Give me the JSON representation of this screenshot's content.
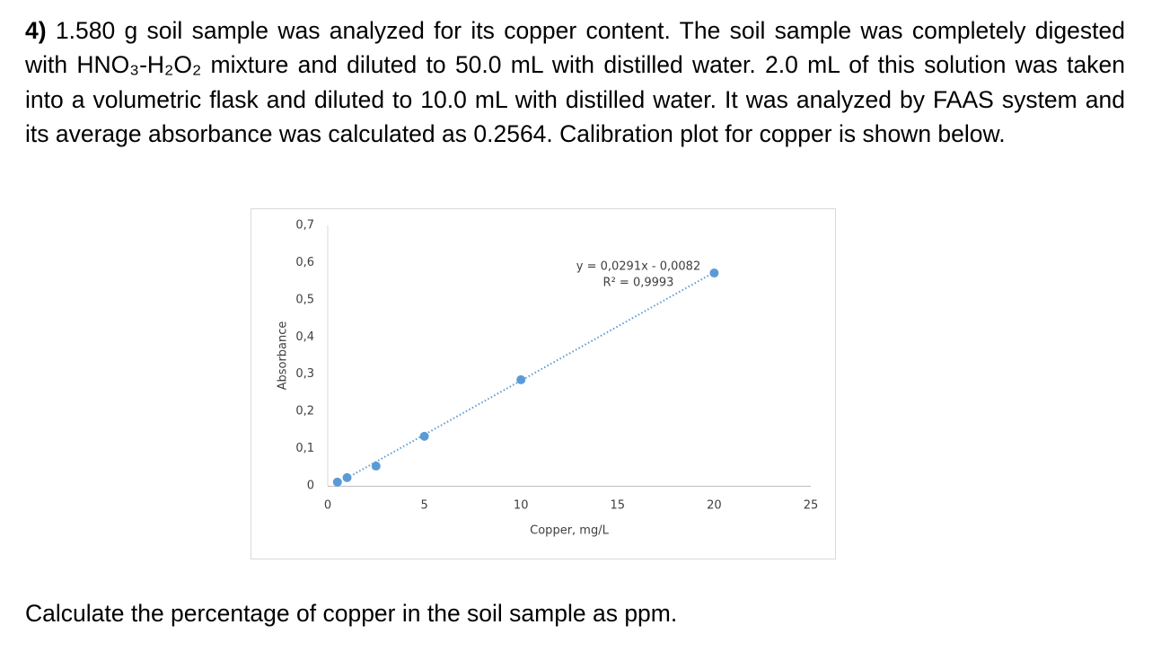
{
  "question": {
    "number": "4)",
    "text": "1.580 g soil sample was analyzed for its copper content. The soil sample was completely digested with HNO₃-H₂O₂ mixture and diluted to 50.0 mL with distilled water. 2.0 mL of this solution was taken into a volumetric flask and diluted to 10.0 mL with distilled water. It was analyzed by FAAS system and its average absorbance was calculated as 0.2564. Calibration plot for copper is shown below."
  },
  "chart_data": {
    "type": "scatter",
    "x_label": "Copper, mg/L",
    "y_label": "Absorbance",
    "x": [
      0.5,
      1,
      2.5,
      5,
      10,
      20
    ],
    "values": [
      0.01,
      0.022,
      0.053,
      0.133,
      0.285,
      0.572
    ],
    "color": "#5b9bd5",
    "xlim": [
      0,
      25
    ],
    "ylim": [
      0,
      0.7
    ],
    "xticks": [
      0,
      5,
      10,
      15,
      20,
      25
    ],
    "yticks": [
      0,
      {
        "value": 0.1,
        "label": "0,1"
      },
      {
        "value": 0.2,
        "label": "0,2"
      },
      {
        "value": 0.3,
        "label": "0,3"
      },
      {
        "value": 0.4,
        "label": "0,4"
      },
      {
        "value": 0.5,
        "label": "0,5"
      },
      {
        "value": 0.6,
        "label": "0,6"
      },
      {
        "value": 0.7,
        "label": "0,7"
      }
    ],
    "trendline": {
      "equation": "y = 0,0291x - 0,0082",
      "r2": "R² = 0,9993",
      "slope": 0.0291,
      "intercept": -0.0082
    }
  },
  "prompt": "Calculate the percentage of copper in the soil sample as ppm."
}
